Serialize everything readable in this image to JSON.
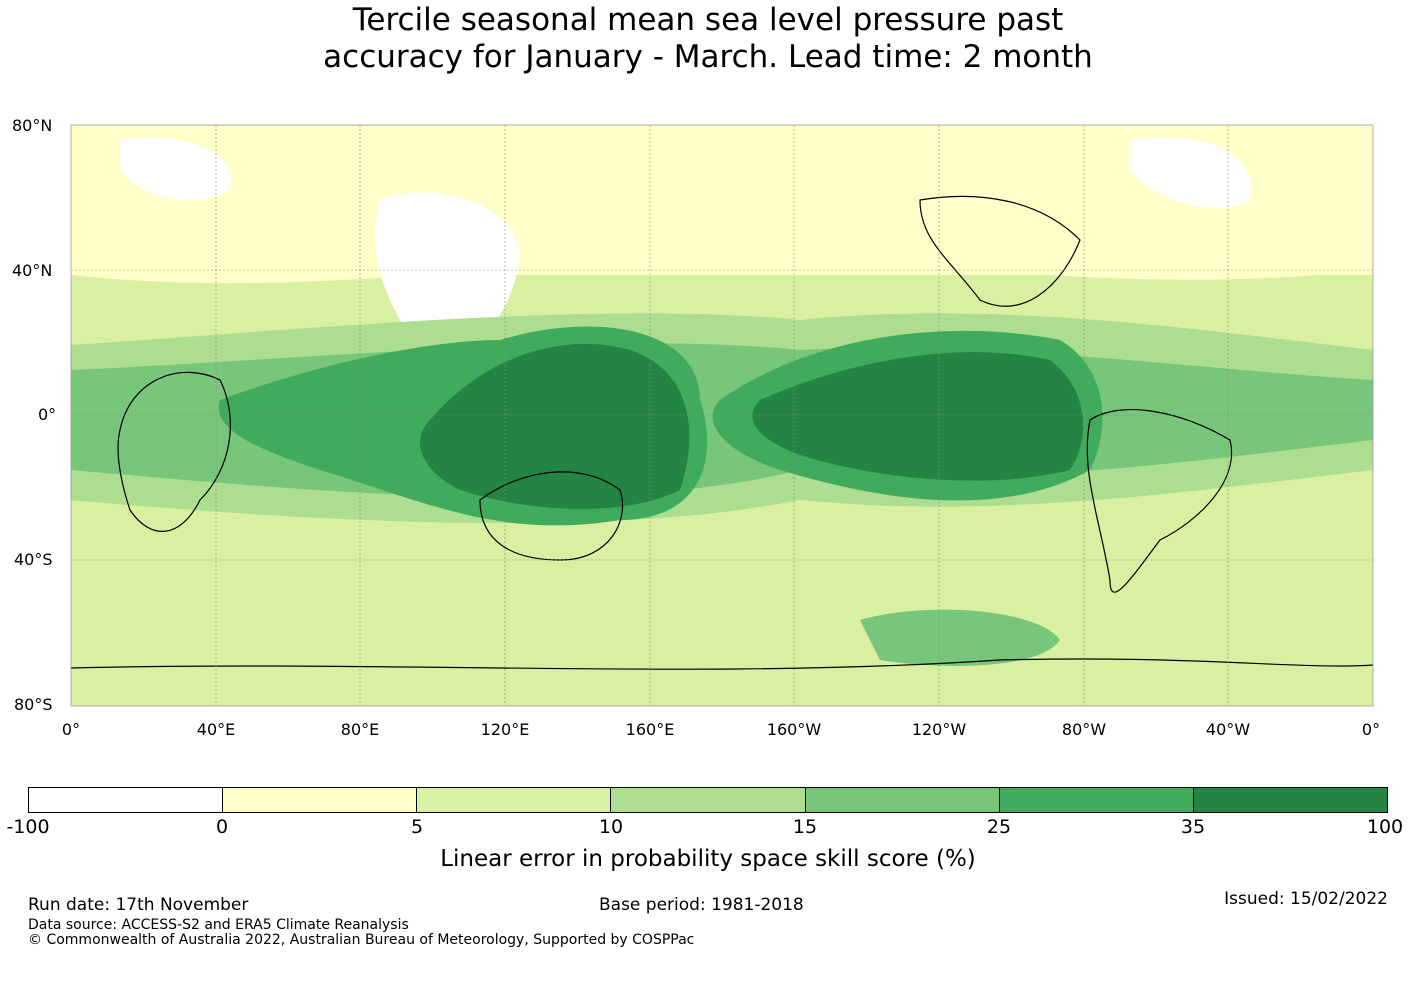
{
  "title": {
    "line1": "Tercile seasonal mean sea level pressure past",
    "line2": "accuracy for January - March. Lead time: 2 month"
  },
  "map": {
    "lat_labels": [
      "80°N",
      "40°N",
      "0°",
      "40°S",
      "80°S"
    ],
    "lon_labels": [
      "0°",
      "40°E",
      "80°E",
      "120°E",
      "160°E",
      "160°W",
      "120°W",
      "80°W",
      "40°W",
      "0°"
    ]
  },
  "colorbar": {
    "ticks": [
      "-100",
      "0",
      "5",
      "10",
      "15",
      "25",
      "35",
      "100"
    ],
    "colors": [
      "#ffffff",
      "#ffffc8",
      "#d9f0a3",
      "#addd8e",
      "#78c679",
      "#41ab5d",
      "#238443"
    ],
    "label": "Linear error in probability space skill score (%)"
  },
  "footer": {
    "run_date": "Run date: 17th November",
    "base_period": "Base period: 1981-2018",
    "issued": "Issued: 15/02/2022",
    "data_source": "Data source: ACCESS-S2 and ERA5 Climate Reanalysis",
    "copyright": "© Commonwealth of Australia 2022, Australian Bureau of Meteorology, Supported by COSPPac"
  }
}
